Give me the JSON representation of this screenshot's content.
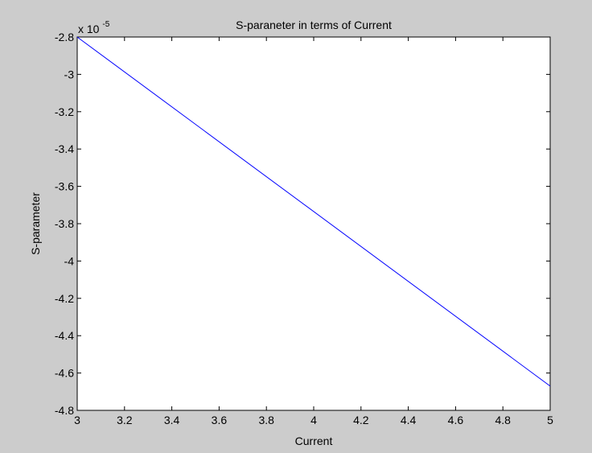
{
  "chart_data": {
    "type": "line",
    "title": "S-paraneter in terms of Current",
    "xlabel": "Current",
    "ylabel": "S-parameter",
    "exponent_base": "x 10",
    "exponent_power": "-5",
    "xlim": [
      3,
      5
    ],
    "ylim": [
      -4.8,
      -2.8
    ],
    "x_ticks": [
      3,
      3.2,
      3.4,
      3.6,
      3.8,
      4,
      4.2,
      4.4,
      4.6,
      4.8,
      5
    ],
    "x_tick_labels": [
      "3",
      "3.2",
      "3.4",
      "3.6",
      "3.8",
      "4",
      "4.2",
      "4.4",
      "4.6",
      "4.8",
      "5"
    ],
    "y_ticks": [
      -2.8,
      -3,
      -3.2,
      -3.4,
      -3.6,
      -3.8,
      -4,
      -4.2,
      -4.4,
      -4.6,
      -4.8
    ],
    "y_tick_labels": [
      "-2.8",
      "-3",
      "-3.2",
      "-3.4",
      "-3.6",
      "-3.8",
      "-4",
      "-4.2",
      "-4.4",
      "-4.6",
      "-4.8"
    ],
    "grid": false,
    "series": [
      {
        "color": "#0000ff",
        "x": [
          3,
          5
        ],
        "y": [
          -2.8,
          -4.67
        ]
      }
    ]
  }
}
